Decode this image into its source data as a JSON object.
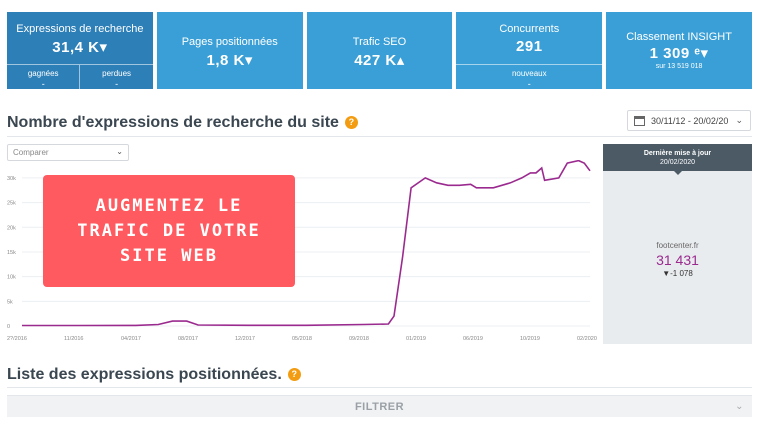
{
  "kpis": [
    {
      "title": "Expressions de recherche",
      "value": "31,4 K▾",
      "sub_cells": [
        {
          "label": "gagnées",
          "value": "-"
        },
        {
          "label": "perdues",
          "value": "-"
        }
      ]
    },
    {
      "title": "Pages positionnées",
      "value": "1,8 K▾"
    },
    {
      "title": "Trafic SEO",
      "value": "427 K▴"
    },
    {
      "title": "Concurrents",
      "value": "291",
      "sub_cells": [
        {
          "label": "nouveaux",
          "value": "-"
        }
      ]
    },
    {
      "title": "Classement INSIGHT",
      "value": "1 309 ᵉ▾",
      "sub": "sur 13 519 018"
    }
  ],
  "section1": {
    "title": "Nombre d'expressions de recherche du site",
    "help": "?"
  },
  "daterange": "30/11/12 - 20/02/20",
  "compare": {
    "placeholder": "Comparer"
  },
  "promo": {
    "text": "AUGMENTEZ LE\nTRAFIC DE VOTRE\nSITE WEB"
  },
  "panel": {
    "header_line1": "Dernière mise à jour",
    "header_line2": "20/02/2020",
    "site": "footcenter.fr",
    "value": "31 431",
    "delta": "▼-1 078"
  },
  "section2": {
    "title": "Liste des expressions positionnées.",
    "help": "?"
  },
  "filter_label": "FILTRER",
  "colors": {
    "kpi": "#3a9fd6",
    "kpi_active": "#2d7fb8",
    "line": "#9b2a8f",
    "promo": "#ff5a5f",
    "help": "#f39c12"
  },
  "chart_data": {
    "type": "line",
    "ylim": [
      0,
      32000
    ],
    "yticks": [
      "0",
      "5k",
      "10k",
      "15k",
      "20k",
      "25k",
      "30k"
    ],
    "xticks": [
      "2?/2016",
      "11/2016",
      "04/2017",
      "08/2017",
      "12/2017",
      "05/2018",
      "09/2018",
      "01/2019",
      "06/2019",
      "10/2019",
      "02/2020"
    ],
    "series": [
      {
        "values": [
          [
            0.0,
            100
          ],
          [
            0.1,
            100
          ],
          [
            0.2,
            120
          ],
          [
            0.24,
            300
          ],
          [
            0.265,
            1000
          ],
          [
            0.29,
            1000
          ],
          [
            0.31,
            200
          ],
          [
            0.4,
            150
          ],
          [
            0.5,
            150
          ],
          [
            0.6,
            300
          ],
          [
            0.645,
            400
          ],
          [
            0.655,
            2000
          ],
          [
            0.67,
            14000
          ],
          [
            0.685,
            28000
          ],
          [
            0.71,
            30000
          ],
          [
            0.73,
            29000
          ],
          [
            0.75,
            28500
          ],
          [
            0.77,
            28500
          ],
          [
            0.79,
            28700
          ],
          [
            0.8,
            28000
          ],
          [
            0.83,
            28000
          ],
          [
            0.86,
            29000
          ],
          [
            0.88,
            30000
          ],
          [
            0.895,
            31000
          ],
          [
            0.905,
            31000
          ],
          [
            0.915,
            32000
          ],
          [
            0.92,
            29500
          ],
          [
            0.945,
            30000
          ],
          [
            0.96,
            33000
          ],
          [
            0.98,
            33500
          ],
          [
            0.99,
            33000
          ],
          [
            1.0,
            31431
          ]
        ]
      }
    ]
  }
}
